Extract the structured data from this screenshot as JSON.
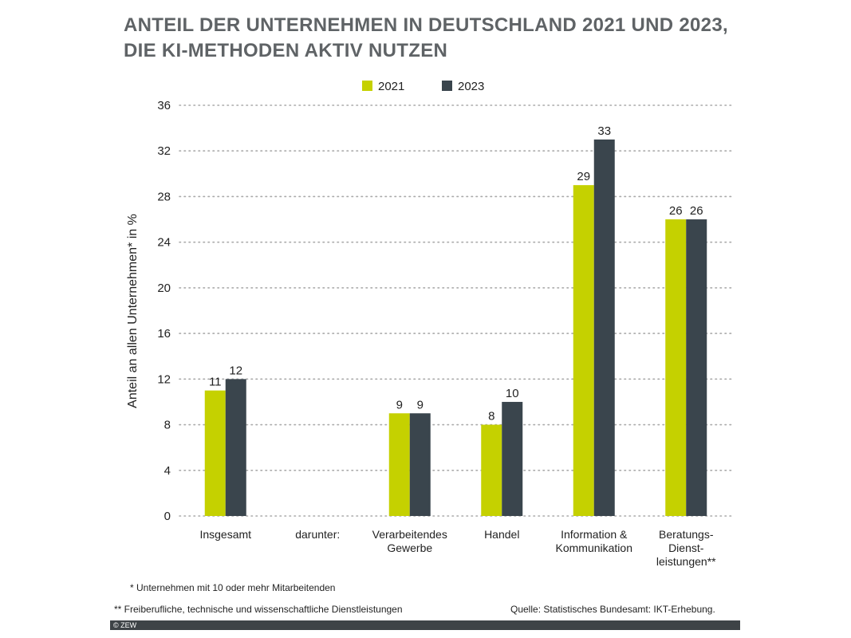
{
  "title": {
    "line1": "ANTEIL DER UNTERNEHMEN IN DEUTSCHLAND 2021 UND 2023,",
    "line2": "DIE KI-METHODEN AKTIV NUTZEN"
  },
  "notes": {
    "footnote1": "* Unternehmen mit 10 oder mehr Mitarbeitenden",
    "footnote2": "** Freiberufliche, technische und wissenschaftliche Dienstleistungen",
    "source": "Quelle: Statistisches Bundesamt: IKT-Erhebung.",
    "copyright": "© ZEW"
  },
  "colors": {
    "series_2021": "#c5d100",
    "series_2023": "#3a454d",
    "grid": "#aaaaaa"
  },
  "chart_data": {
    "type": "bar",
    "ylabel": "Anteil an allen Unternehmen* in %",
    "ylim": [
      0,
      36
    ],
    "yticks": [
      0,
      4,
      8,
      12,
      16,
      20,
      24,
      28,
      32,
      36
    ],
    "grid": true,
    "legend_position": "top-center",
    "categories": [
      {
        "label": [
          "Insgesamt"
        ],
        "values": [
          11,
          12
        ]
      },
      {
        "label": [
          "darunter:"
        ],
        "values": [
          null,
          null
        ]
      },
      {
        "label": [
          "Verarbeitendes",
          "Gewerbe"
        ],
        "values": [
          9,
          9
        ]
      },
      {
        "label": [
          "Handel"
        ],
        "values": [
          8,
          10
        ]
      },
      {
        "label": [
          "Information &",
          "Kommunikation"
        ],
        "values": [
          29,
          33
        ]
      },
      {
        "label": [
          "Beratungs-",
          "Dienst-",
          "leistungen**"
        ],
        "values": [
          26,
          26
        ]
      }
    ],
    "series": [
      {
        "name": "2021",
        "values": [
          11,
          null,
          9,
          8,
          29,
          26
        ]
      },
      {
        "name": "2023",
        "values": [
          12,
          null,
          9,
          10,
          33,
          26
        ]
      }
    ]
  }
}
